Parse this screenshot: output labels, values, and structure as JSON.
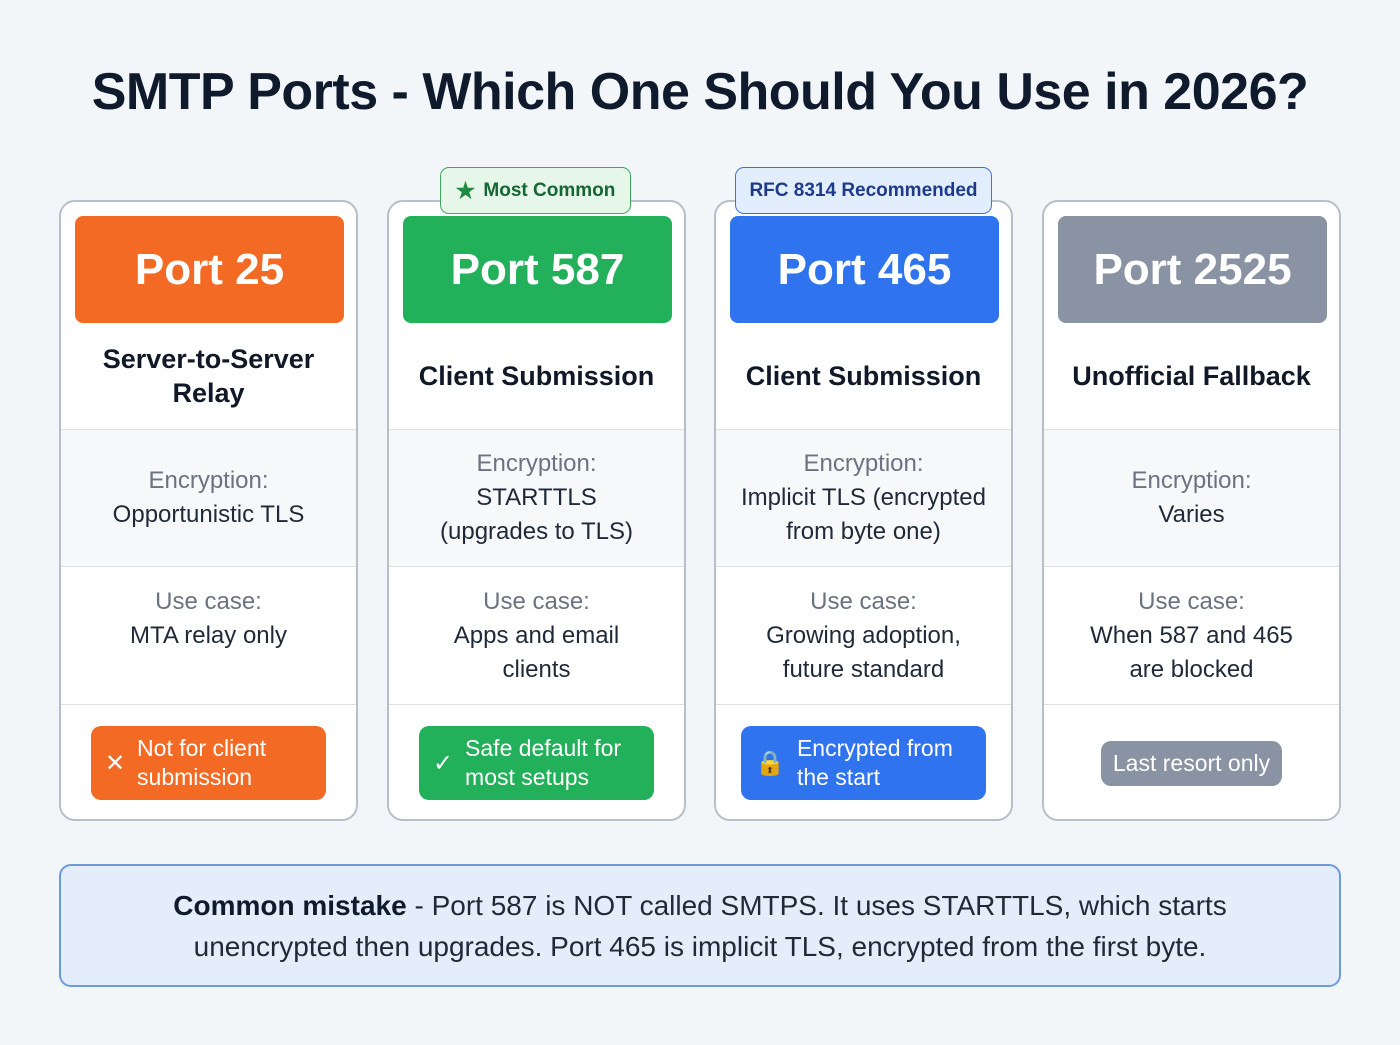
{
  "title": "SMTP Ports - Which One Should You Use in 2026?",
  "tags": [
    {
      "card": 1,
      "icon": "star-icon",
      "label": "Most Common",
      "bg": "#e6f7ea",
      "border": "#3fa55f",
      "color": "#166534"
    },
    {
      "card": 2,
      "icon": "",
      "label": "RFC 8314 Recommended",
      "bg": "#e2edfd",
      "border": "#3b74d9",
      "color": "#1e3a8a"
    }
  ],
  "cards": [
    {
      "port": "Port 25",
      "color": "#f26a24",
      "subtitle": "Server-to-Server Relay",
      "enc_label": "Encryption:",
      "enc_value": "Opportunistic TLS",
      "use_label": "Use case:",
      "use_value": "MTA relay only",
      "badge": "Not for client submission",
      "badge_icon": "x-icon",
      "badge_glyph": "✕"
    },
    {
      "port": "Port 587",
      "color": "#22b05a",
      "subtitle": "Client Submission",
      "enc_label": "Encryption:",
      "enc_value": "STARTTLS (upgrades to TLS)",
      "use_label": "Use case:",
      "use_value": "Apps and email clients",
      "badge": "Safe default for most setups",
      "badge_icon": "check-icon",
      "badge_glyph": "✓"
    },
    {
      "port": "Port 465",
      "color": "#2f74ee",
      "subtitle": "Client Submission",
      "enc_label": "Encryption:",
      "enc_value": "Implicit TLS (encrypted from byte one)",
      "use_label": "Use case:",
      "use_value": "Growing adoption, future standard",
      "badge": "Encrypted from the start",
      "badge_icon": "lock-icon",
      "badge_glyph": "🔒"
    },
    {
      "port": "Port 2525",
      "color": "#8a93a3",
      "subtitle": "Unofficial Fallback",
      "enc_label": "Encryption:",
      "enc_value": "Varies",
      "use_label": "Use case:",
      "use_value": "When 587 and 465 are blocked",
      "badge": "Last resort only",
      "badge_icon": "",
      "badge_glyph": ""
    }
  ],
  "note": {
    "bold": "Common mistake",
    "text": " - Port 587 is NOT called SMTPS. It uses STARTTLS, which starts unencrypted then upgrades. Port 465 is implicit TLS, encrypted from the first byte."
  }
}
